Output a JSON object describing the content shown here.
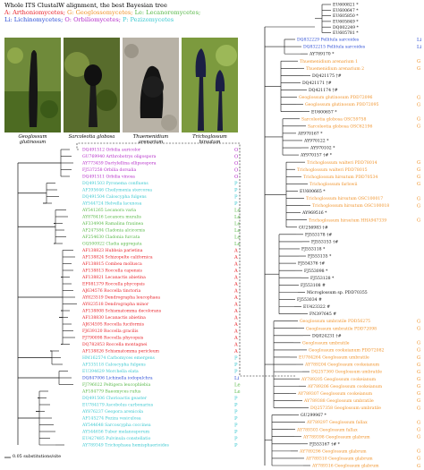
{
  "header": {
    "line1": "Whole ITS ClustalW alignment, the best Bayesian tree",
    "legend": [
      {
        "text": "A: Arthoniomycetes; ",
        "color": "#e8232a"
      },
      {
        "text": "G: Geoglossomycetes; ",
        "color": "#f0932b"
      },
      {
        "text": "Le: Lecanoromycetes;",
        "color": "#58b848"
      },
      {
        "text": "Li: Lichinomycetes; ",
        "color": "#2e4fd6"
      },
      {
        "text": "O: Orbiliomycetes; ",
        "color": "#b42cc8"
      },
      {
        "text": "P: Pezizomycetes",
        "color": "#3cc8d0"
      }
    ]
  },
  "photos": [
    {
      "caption": "Geoglossum glutinosum",
      "icon": "earth-tongue-photo"
    },
    {
      "caption": "Sarcoleotia globosa",
      "icon": "earth-tongue-photo"
    },
    {
      "caption": "Thuemenidium arenarium",
      "icon": "earth-tongue-photo"
    },
    {
      "caption": "Trichoglossum hirsutum",
      "icon": "earth-tongue-photo"
    }
  ],
  "scale_bar": "0.05 substitutions/site",
  "colors": {
    "A": "#e8232a",
    "G": "#f0932b",
    "Le": "#58b848",
    "Li": "#2e4fd6",
    "O": "#b42cc8",
    "P": "#3cc8d0",
    "black": "#111111"
  },
  "left_taxa": [
    {
      "label": "DQ491512 Orbilia auricolor",
      "cls": "O"
    },
    {
      "label": "GU769940 Arthrobotrys oligospora",
      "cls": "O"
    },
    {
      "label": "AY773459 Dactylellina ellipsospora",
      "cls": "O"
    },
    {
      "label": "FJ537258 Orbilia dorsalia",
      "cls": "O"
    },
    {
      "label": "DQ491511 Orbilia vinosa",
      "cls": "O"
    },
    {
      "label": "DQ491503 Pyronema confluens",
      "cls": "P"
    },
    {
      "label": "AF395646 Cheilymenia stercorea",
      "cls": "P"
    },
    {
      "label": "DQ491504 Caloscypha fulgens",
      "cls": "P"
    },
    {
      "label": "AY544724 Helvella lacunosa",
      "cls": "P"
    },
    {
      "label": "AY541265 Lecanora varia",
      "cls": "Le"
    },
    {
      "label": "AY878416 Lecanora muralis",
      "cls": "Le"
    },
    {
      "label": "AF334904 Ramalina fraxinea",
      "cls": "Le"
    },
    {
      "label": "AF247584 Cladonia alcicornis",
      "cls": "Le"
    },
    {
      "label": "AF254630 Cladonia furcata",
      "cls": "Le"
    },
    {
      "label": "GQ500922 Cladia aggregata",
      "cls": "Le"
    },
    {
      "label": "AF138823 Hubbsia parietina",
      "cls": "A"
    },
    {
      "label": "AF138824 Schizopelte californica",
      "cls": "A"
    },
    {
      "label": "AF138815 Combea mollusca",
      "cls": "A"
    },
    {
      "label": "AF138813 Roccella capensis",
      "cls": "A"
    },
    {
      "label": "AF138821 Lecanactis abietina",
      "cls": "A"
    },
    {
      "label": "EF081379 Roccella phycopsis",
      "cls": "A"
    },
    {
      "label": "AJ634576 Roccella tinctoria",
      "cls": "A"
    },
    {
      "label": "AY823519 Dendrographa leucophaea",
      "cls": "A"
    },
    {
      "label": "AY823518 Dendrographa minor",
      "cls": "A"
    },
    {
      "label": "AF138808 Schismatomma decolorans",
      "cls": "A"
    },
    {
      "label": "AF138830 Lecanactis abietina",
      "cls": "A"
    },
    {
      "label": "AJ634595 Roccella fuciformis",
      "cls": "A"
    },
    {
      "label": "FJ639120 Roccella gracilis",
      "cls": "A"
    },
    {
      "label": "FJ790098 Roccella phycopsis",
      "cls": "A"
    },
    {
      "label": "DQ782853 Roccella montagnei",
      "cls": "A"
    },
    {
      "label": "AF138826 Schismatomma pericleum",
      "cls": "A"
    },
    {
      "label": "HM162574 Carbomyces emergens",
      "cls": "P"
    },
    {
      "label": "AF335118 Caloscypha fulgens",
      "cls": "P"
    },
    {
      "label": "EU394629 Morchella elata",
      "cls": "P"
    },
    {
      "label": "DQ847006 Lichinella iodopulchra",
      "cls": "Li"
    },
    {
      "label": "FJ796022 Peltigera leucophlebia",
      "cls": "Le"
    },
    {
      "label": "AF184779 Baeomyces rufus",
      "cls": "Le"
    },
    {
      "label": "DQ491506 Chorioactis geaster",
      "cls": "P"
    },
    {
      "label": "EU784179 Ascobolus carbonarius",
      "cls": "P"
    },
    {
      "label": "AY876237 Geopora arenicola",
      "cls": "P"
    },
    {
      "label": "AF145274 Peziza vesiculosa",
      "cls": "P"
    },
    {
      "label": "AY544648 Sarcoscypha coccinea",
      "cls": "P"
    },
    {
      "label": "AY544656 Tuber melanosporum",
      "cls": "P"
    },
    {
      "label": "EU427485 Pulvinula constellatio",
      "cls": "P"
    },
    {
      "label": "AY789349 Trichophaea hemisphaerioides",
      "cls": "P"
    }
  ],
  "right_top_ids": [
    "EU600821 *",
    "EU600647 *",
    "EU605850 *",
    "EU605849 *",
    "DQ002249 *",
    "EU605781 *"
  ],
  "right_taxa": [
    {
      "label": "DQ832229 Pellitula sarcoides",
      "cls": "Li"
    },
    {
      "label": "DQ832215 Pellitula sarcoides",
      "cls": "Li"
    },
    {
      "label": "AY789170 *",
      "cls": "black"
    },
    {
      "label": "Thuemenidium arenarium 1",
      "cls": "G"
    },
    {
      "label": "Thuemenidium arenarium 2",
      "cls": "G"
    },
    {
      "label": "DQ421175 †#",
      "cls": "black"
    },
    {
      "label": "DQ421171 †#",
      "cls": "black"
    },
    {
      "label": "DQ421174 †#",
      "cls": "black"
    },
    {
      "label": "Geoglossum glutinosum PDD72096",
      "cls": "G"
    },
    {
      "label": "Geoglossum glutinosum PDD72095",
      "cls": "G"
    },
    {
      "label": "EU600657 *",
      "cls": "black"
    },
    {
      "label": "Sarcoleotia globosa OSC59758",
      "cls": "G"
    },
    {
      "label": "Sarcoleotia globosa OSC62196",
      "cls": "G"
    },
    {
      "label": "AY970167 *",
      "cls": "black"
    },
    {
      "label": "AY970122 *",
      "cls": "black"
    },
    {
      "label": "AY970102 *",
      "cls": "black"
    },
    {
      "label": "AY970157 †# *",
      "cls": "black"
    },
    {
      "label": "Trichoglossum walteri PDD78014",
      "cls": "G"
    },
    {
      "label": "Trichoglossum walteri PDD78015",
      "cls": "G"
    },
    {
      "label": "Trichoglossum hirsutum PDD70534",
      "cls": "G"
    },
    {
      "label": "Trichoglossum farlowii",
      "cls": "G"
    },
    {
      "label": "EU600665 *",
      "cls": "black"
    },
    {
      "label": "Trichoglossum hirsutum OSC100017",
      "cls": "G"
    },
    {
      "label": "Trichoglossum hirsutum OSC100018",
      "cls": "G"
    },
    {
      "label": "AY969516 *",
      "cls": "black"
    },
    {
      "label": "Trichoglossum hirsutum HHA947339",
      "cls": "G"
    },
    {
      "label": "GU256983 †#",
      "cls": "black"
    },
    {
      "label": "FJ553178 †#",
      "cls": "black"
    },
    {
      "label": "FJ553153 †#",
      "cls": "black"
    },
    {
      "label": "FJ553118 *",
      "cls": "black"
    },
    {
      "label": "FJ553135 *",
      "cls": "black"
    },
    {
      "label": "FJ554376 †#",
      "cls": "black"
    },
    {
      "label": "FJ553098 *",
      "cls": "black"
    },
    {
      "label": "FJ553128 *",
      "cls": "black"
    },
    {
      "label": "FJ553108 #",
      "cls": "black"
    },
    {
      "label": "Microglossum sp. PDD70355",
      "cls": "black"
    },
    {
      "label": "FJ553034 #",
      "cls": "black"
    },
    {
      "label": "EU423322 #",
      "cls": "black"
    },
    {
      "label": "FN397645 #",
      "cls": "black"
    },
    {
      "label": "Geoglossum umbratile PDD56275",
      "cls": "G"
    },
    {
      "label": "Geoglossum umbratile PDD72098",
      "cls": "G"
    },
    {
      "label": "DQ024231 †#",
      "cls": "black"
    },
    {
      "label": "Geoglossum umbratile",
      "cls": "G"
    },
    {
      "label": "Geoglossum cookeianum PDD72082",
      "cls": "G"
    },
    {
      "label": "EU784264 Geoglossum umbratile",
      "cls": "G"
    },
    {
      "label": "AY789204 Geoglossum cookeianum",
      "cls": "G"
    },
    {
      "label": "DQ257360 Geoglossum umbratile",
      "cls": "G"
    },
    {
      "label": "AY789205 Geoglossum cookeianum",
      "cls": "G"
    },
    {
      "label": "AY789206 Geoglossum cookeianum",
      "cls": "G"
    },
    {
      "label": "AY789307 Geoglossum cookeianum",
      "cls": "G"
    },
    {
      "label": "AY789388 Geoglossum umbratile",
      "cls": "G"
    },
    {
      "label": "DQ257358 Geoglossum umbratile",
      "cls": "G"
    },
    {
      "label": "GU299967 *",
      "cls": "black"
    },
    {
      "label": "AY789297 Geoglossum fallax",
      "cls": "G"
    },
    {
      "label": "AY789303 Geoglossum fallax",
      "cls": "G"
    },
    {
      "label": "AY789398 Geoglossum glabrum",
      "cls": "G"
    },
    {
      "label": "FJ553167 †# *",
      "cls": "black"
    },
    {
      "label": "AY789296 Geoglossum glabrum",
      "cls": "G"
    },
    {
      "label": "AY789310 Geoglossum glabrum",
      "cls": "G"
    },
    {
      "label": "AY789316 Geoglossum glabrum",
      "cls": "G"
    }
  ]
}
